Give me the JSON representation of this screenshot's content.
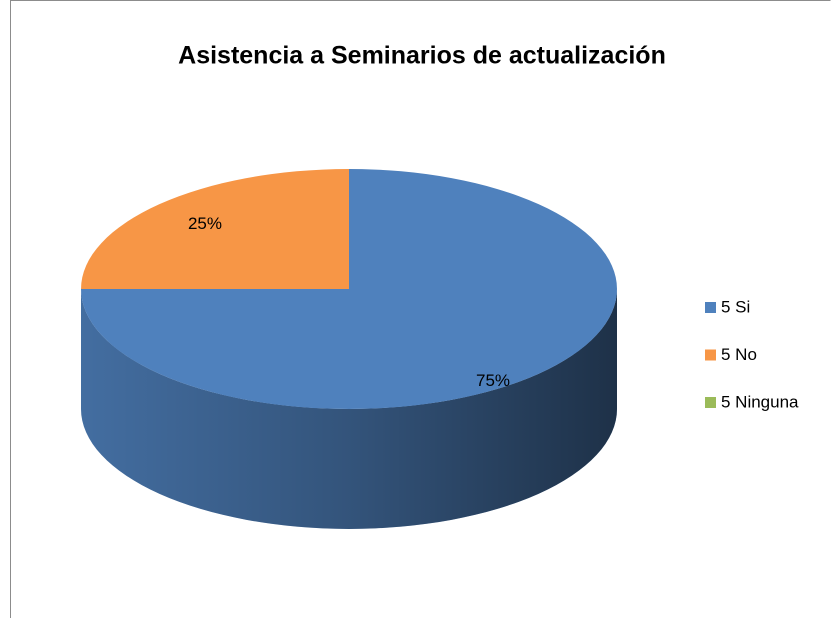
{
  "chart_data": {
    "type": "pie",
    "title": "Asistencia a Seminarios de actualización",
    "categories": [
      "5 Si",
      "5 No",
      "5 Ninguna"
    ],
    "values": [
      75,
      25,
      0
    ],
    "value_labels": [
      "75%",
      "25%",
      null
    ],
    "colors": [
      "#4f81bd",
      "#f79646",
      "#9bbb59"
    ],
    "legend": "right"
  }
}
